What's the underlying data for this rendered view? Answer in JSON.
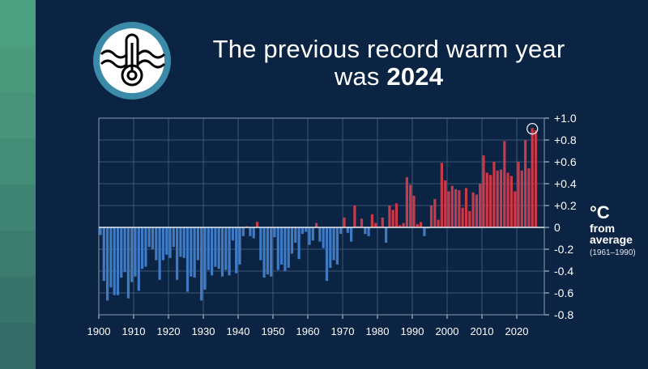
{
  "title": {
    "line1": "The previous record warm year",
    "line2_prefix": "was ",
    "line2_bold": "2024"
  },
  "icon": "thermometer-in-waves-icon",
  "unit_label": {
    "line1": "°C",
    "line2": "from",
    "line3": "average",
    "line4": "(1961–1990)"
  },
  "colors": {
    "background": "#0b2443",
    "warm": "#c8394a",
    "cool": "#3f7bc4",
    "strip_top": "#4a9e7e",
    "icon_ring": "#3a8aa8"
  },
  "chart_data": {
    "type": "bar",
    "title": "",
    "xlabel": "",
    "ylabel": "°C from average (1961–1990)",
    "xlim": [
      1900,
      2025
    ],
    "ylim": [
      -0.8,
      1.0
    ],
    "grid": true,
    "highlight_year": 2024,
    "x_ticks": [
      "1900",
      "1910",
      "1920",
      "1930",
      "1940",
      "1950",
      "1960",
      "1970",
      "1980",
      "1990",
      "2000",
      "2010",
      "2020"
    ],
    "y_ticks": [
      "+1.0",
      "+0.8",
      "+0.6",
      "+0.4",
      "+0.2",
      "0",
      "-0.2",
      "-0.4",
      "-0.6",
      "-0.8"
    ],
    "y_tick_values": [
      1.0,
      0.8,
      0.6,
      0.4,
      0.2,
      0,
      -0.2,
      -0.4,
      -0.6,
      -0.8
    ],
    "start_year": 1900,
    "values": [
      -0.07,
      -0.49,
      -0.67,
      -0.55,
      -0.62,
      -0.62,
      -0.46,
      -0.41,
      -0.65,
      -0.5,
      -0.45,
      -0.58,
      -0.38,
      -0.36,
      -0.18,
      -0.2,
      -0.3,
      -0.48,
      -0.3,
      -0.25,
      -0.28,
      -0.18,
      -0.48,
      -0.27,
      -0.28,
      -0.59,
      -0.45,
      -0.46,
      -0.3,
      -0.67,
      -0.57,
      -0.39,
      -0.44,
      -0.36,
      -0.38,
      -0.45,
      -0.39,
      -0.44,
      -0.12,
      -0.42,
      -0.34,
      -0.08,
      0.01,
      -0.08,
      -0.1,
      0.05,
      -0.3,
      -0.46,
      -0.43,
      -0.45,
      -0.09,
      -0.39,
      -0.34,
      -0.4,
      -0.37,
      -0.24,
      -0.14,
      -0.29,
      -0.06,
      -0.04,
      -0.16,
      -0.12,
      0.04,
      -0.13,
      -0.19,
      -0.49,
      -0.37,
      -0.3,
      -0.34,
      -0.06,
      0.09,
      -0.05,
      -0.13,
      0.2,
      0.01,
      0.08,
      -0.06,
      -0.08,
      0.12,
      0.04,
      0.01,
      0.09,
      -0.14,
      0.2,
      0.16,
      0.22,
      0.02,
      0.04,
      0.46,
      0.39,
      0.29,
      0.03,
      0.05,
      -0.08,
      -0.01,
      0.2,
      0.26,
      0.07,
      0.59,
      0.43,
      0.33,
      0.38,
      0.35,
      0.34,
      0.18,
      0.36,
      0.15,
      0.32,
      0.3,
      0.4,
      0.66,
      0.5,
      0.48,
      0.6,
      0.52,
      0.53,
      0.79,
      0.5,
      0.47,
      0.33,
      0.6,
      0.52,
      0.8,
      0.54,
      0.91,
      0.89
    ]
  }
}
